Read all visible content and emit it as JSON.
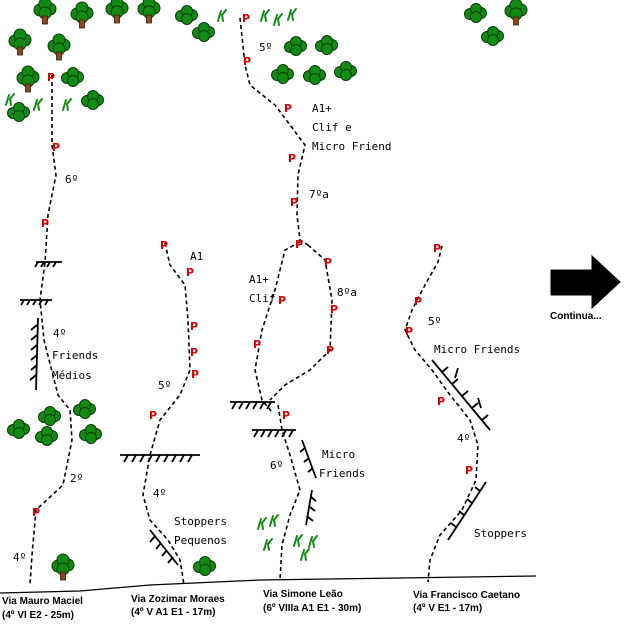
{
  "routes": [
    {
      "name": "Via Mauro Maciel",
      "grade": "(4º VI E2 - 25m)",
      "pitch_labels": [
        "6º",
        "4º",
        "Friends",
        "Médios",
        "2º",
        "4º"
      ]
    },
    {
      "name": "Via Zozimar Moraes",
      "grade": "(4º V A1 E1 - 17m)",
      "pitch_labels": [
        "A1",
        "5º",
        "4º",
        "Stoppers",
        "Pequenos"
      ]
    },
    {
      "name": "Via Simone Leão",
      "grade": "(6º VIIIa A1 E1 - 30m)",
      "pitch_labels": [
        "5º",
        "A1+",
        "Clif e",
        "Micro Friend",
        "7ºa",
        "A1+",
        "Clif",
        "8ºa",
        "6º",
        "Micro",
        "Friends"
      ]
    },
    {
      "name": "Via Francisco Caetano",
      "grade": "(4º V E1 - 17m)",
      "pitch_labels": [
        "5º",
        "Micro Friends",
        "4º",
        "Stoppers"
      ]
    }
  ],
  "protection_mark": "P",
  "continue_label": "Continua...",
  "icons": {
    "tree": "tree-icon",
    "grass": "grass-icon",
    "arrow": "arrow-right-icon"
  },
  "colors": {
    "protection": "#dd0000",
    "vegetation": "#138a13",
    "trunk": "#8b4a1e",
    "line": "#000000"
  }
}
